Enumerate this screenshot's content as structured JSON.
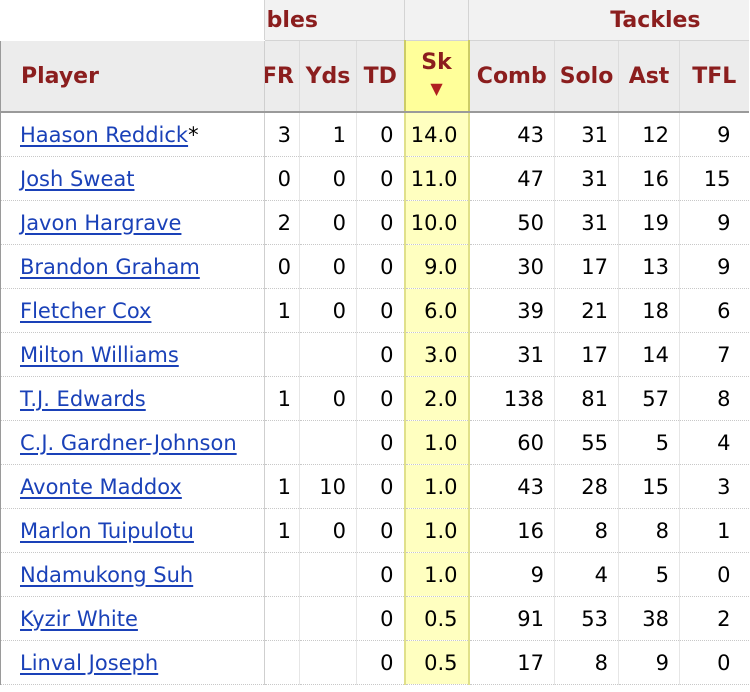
{
  "header": {
    "groups": {
      "fumbles": "nbles",
      "tackles": "Tackles"
    },
    "columns": {
      "player": "Player",
      "fr": "FR",
      "yds": "Yds",
      "td": "TD",
      "sk": "Sk",
      "sort_arrow": "▼",
      "comb": "Comb",
      "solo": "Solo",
      "ast": "Ast",
      "tfl": "TFL"
    }
  },
  "rows": [
    {
      "player": "Haason Reddick",
      "suffix": "*",
      "fr": "3",
      "yds": "1",
      "td": "0",
      "sk": "14.0",
      "comb": "43",
      "solo": "31",
      "ast": "12",
      "tfl": "9"
    },
    {
      "player": "Josh Sweat",
      "suffix": "",
      "fr": "0",
      "yds": "0",
      "td": "0",
      "sk": "11.0",
      "comb": "47",
      "solo": "31",
      "ast": "16",
      "tfl": "15"
    },
    {
      "player": "Javon Hargrave",
      "suffix": "",
      "fr": "2",
      "yds": "0",
      "td": "0",
      "sk": "10.0",
      "comb": "50",
      "solo": "31",
      "ast": "19",
      "tfl": "9"
    },
    {
      "player": "Brandon Graham",
      "suffix": "",
      "fr": "0",
      "yds": "0",
      "td": "0",
      "sk": "9.0",
      "comb": "30",
      "solo": "17",
      "ast": "13",
      "tfl": "9"
    },
    {
      "player": "Fletcher Cox",
      "suffix": "",
      "fr": "1",
      "yds": "0",
      "td": "0",
      "sk": "6.0",
      "comb": "39",
      "solo": "21",
      "ast": "18",
      "tfl": "6"
    },
    {
      "player": "Milton Williams",
      "suffix": "",
      "fr": "",
      "yds": "",
      "td": "0",
      "sk": "3.0",
      "comb": "31",
      "solo": "17",
      "ast": "14",
      "tfl": "7"
    },
    {
      "player": "T.J. Edwards",
      "suffix": "",
      "fr": "1",
      "yds": "0",
      "td": "0",
      "sk": "2.0",
      "comb": "138",
      "solo": "81",
      "ast": "57",
      "tfl": "8"
    },
    {
      "player": "C.J. Gardner-Johnson",
      "suffix": "",
      "fr": "",
      "yds": "",
      "td": "0",
      "sk": "1.0",
      "comb": "60",
      "solo": "55",
      "ast": "5",
      "tfl": "4"
    },
    {
      "player": "Avonte Maddox",
      "suffix": "",
      "fr": "1",
      "yds": "10",
      "td": "0",
      "sk": "1.0",
      "comb": "43",
      "solo": "28",
      "ast": "15",
      "tfl": "3"
    },
    {
      "player": "Marlon Tuipulotu",
      "suffix": "",
      "fr": "1",
      "yds": "0",
      "td": "0",
      "sk": "1.0",
      "comb": "16",
      "solo": "8",
      "ast": "8",
      "tfl": "1"
    },
    {
      "player": "Ndamukong Suh",
      "suffix": "",
      "fr": "",
      "yds": "",
      "td": "0",
      "sk": "1.0",
      "comb": "9",
      "solo": "4",
      "ast": "5",
      "tfl": "0"
    },
    {
      "player": "Kyzir White",
      "suffix": "",
      "fr": "",
      "yds": "",
      "td": "0",
      "sk": "0.5",
      "comb": "91",
      "solo": "53",
      "ast": "38",
      "tfl": "2"
    },
    {
      "player": "Linval Joseph",
      "suffix": "",
      "fr": "",
      "yds": "",
      "td": "0",
      "sk": "0.5",
      "comb": "17",
      "solo": "8",
      "ast": "9",
      "tfl": "0"
    }
  ],
  "colors": {
    "header_text": "#8b1e1e",
    "link": "#1a41b8",
    "sort_highlight": "#ffff9a"
  }
}
